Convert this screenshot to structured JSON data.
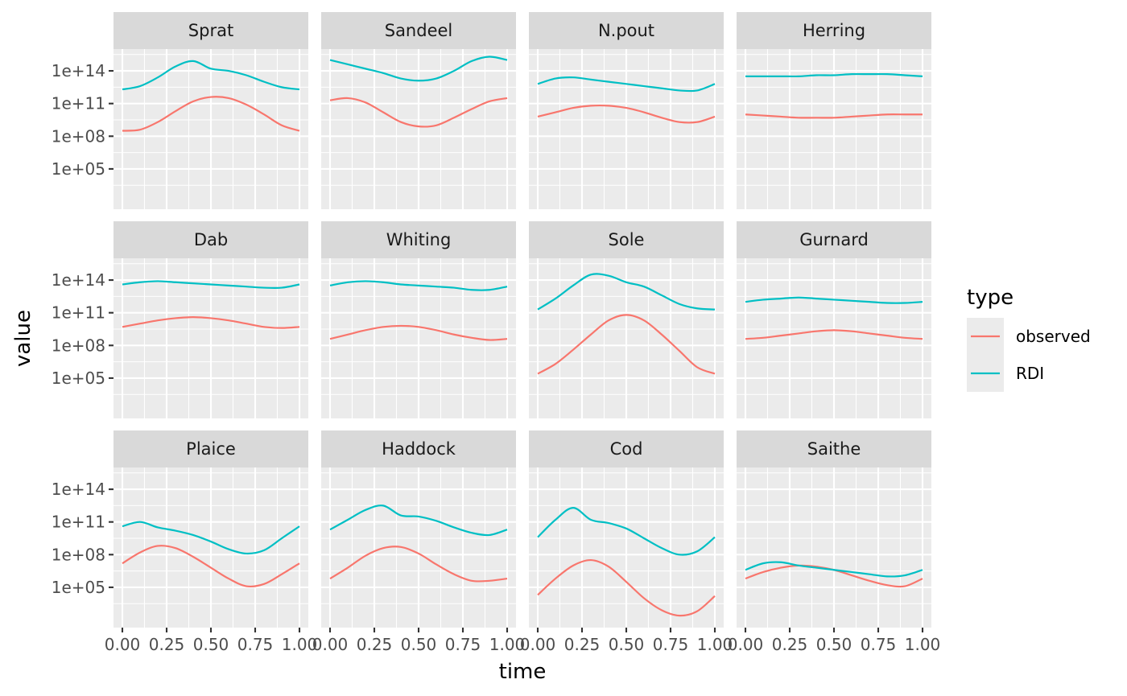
{
  "chart_data": {
    "type": "line",
    "facet_layout": {
      "rows": 3,
      "cols": 4
    },
    "xlabel": "time",
    "ylabel": "value",
    "x_ticks": [
      0,
      0.25,
      0.5,
      0.75,
      1
    ],
    "x_tick_labels": [
      "0.00",
      "0.25",
      "0.50",
      "0.75",
      "1.00"
    ],
    "xlim": [
      -0.05,
      1.05
    ],
    "y_scale": "log10",
    "ylim_log10": [
      1.3,
      16.0
    ],
    "y_ticks_log10": [
      5,
      8,
      11,
      14
    ],
    "y_tick_labels": [
      "1e+05",
      "1e+08",
      "1e+11",
      "1e+14"
    ],
    "legend": {
      "title": "type",
      "placement": "right",
      "entries": [
        {
          "label": "observed",
          "color": "#F8766D"
        },
        {
          "label": "RDI",
          "color": "#00BFC4"
        }
      ]
    },
    "x": [
      0,
      0.1,
      0.2,
      0.3,
      0.4,
      0.5,
      0.6,
      0.7,
      0.8,
      0.9,
      1
    ],
    "panels": [
      {
        "title": "Sprat",
        "series": [
          {
            "name": "observed",
            "log10_values": [
              8.5,
              8.6,
              9.3,
              10.3,
              11.2,
              11.6,
              11.5,
              10.9,
              10.0,
              9.0,
              8.5
            ]
          },
          {
            "name": "RDI",
            "log10_values": [
              12.3,
              12.6,
              13.4,
              14.4,
              14.9,
              14.2,
              14.0,
              13.6,
              13.0,
              12.5,
              12.3
            ]
          }
        ]
      },
      {
        "title": "Sandeel",
        "series": [
          {
            "name": "observed",
            "log10_values": [
              11.3,
              11.5,
              11.1,
              10.2,
              9.3,
              8.9,
              9.0,
              9.7,
              10.5,
              11.2,
              11.5
            ]
          },
          {
            "name": "RDI",
            "log10_values": [
              15.0,
              14.6,
              14.2,
              13.8,
              13.3,
              13.1,
              13.3,
              14.0,
              14.9,
              15.3,
              15.0
            ]
          }
        ]
      },
      {
        "title": "N.pout",
        "series": [
          {
            "name": "observed",
            "log10_values": [
              9.8,
              10.2,
              10.6,
              10.8,
              10.8,
              10.6,
              10.2,
              9.7,
              9.3,
              9.3,
              9.8
            ]
          },
          {
            "name": "RDI",
            "log10_values": [
              12.8,
              13.3,
              13.4,
              13.2,
              13.0,
              12.8,
              12.6,
              12.4,
              12.2,
              12.2,
              12.8
            ]
          }
        ]
      },
      {
        "title": "Herring",
        "series": [
          {
            "name": "observed",
            "log10_values": [
              10.0,
              9.9,
              9.8,
              9.7,
              9.7,
              9.7,
              9.8,
              9.9,
              10.0,
              10.0,
              10.0
            ]
          },
          {
            "name": "RDI",
            "log10_values": [
              13.5,
              13.5,
              13.5,
              13.5,
              13.6,
              13.6,
              13.7,
              13.7,
              13.7,
              13.6,
              13.5
            ]
          }
        ]
      },
      {
        "title": "Dab",
        "series": [
          {
            "name": "observed",
            "log10_values": [
              9.7,
              10.0,
              10.3,
              10.5,
              10.6,
              10.5,
              10.3,
              10.0,
              9.7,
              9.6,
              9.7
            ]
          },
          {
            "name": "RDI",
            "log10_values": [
              13.6,
              13.8,
              13.9,
              13.8,
              13.7,
              13.6,
              13.5,
              13.4,
              13.3,
              13.3,
              13.6
            ]
          }
        ]
      },
      {
        "title": "Whiting",
        "series": [
          {
            "name": "observed",
            "log10_values": [
              8.6,
              9.0,
              9.4,
              9.7,
              9.8,
              9.7,
              9.4,
              9.0,
              8.7,
              8.5,
              8.6
            ]
          },
          {
            "name": "RDI",
            "log10_values": [
              13.5,
              13.8,
              13.9,
              13.8,
              13.6,
              13.5,
              13.4,
              13.3,
              13.1,
              13.1,
              13.4
            ]
          }
        ]
      },
      {
        "title": "Sole",
        "series": [
          {
            "name": "observed",
            "log10_values": [
              5.4,
              6.3,
              7.6,
              9.0,
              10.3,
              10.8,
              10.3,
              9.0,
              7.5,
              6.0,
              5.4
            ]
          },
          {
            "name": "RDI",
            "log10_values": [
              11.3,
              12.3,
              13.5,
              14.5,
              14.4,
              13.8,
              13.4,
              12.6,
              11.8,
              11.4,
              11.3
            ]
          }
        ]
      },
      {
        "title": "Gurnard",
        "series": [
          {
            "name": "observed",
            "log10_values": [
              8.6,
              8.7,
              8.9,
              9.1,
              9.3,
              9.4,
              9.3,
              9.1,
              8.9,
              8.7,
              8.6
            ]
          },
          {
            "name": "RDI",
            "log10_values": [
              12.0,
              12.2,
              12.3,
              12.4,
              12.3,
              12.2,
              12.1,
              12.0,
              11.9,
              11.9,
              12.0
            ]
          }
        ]
      },
      {
        "title": "Plaice",
        "series": [
          {
            "name": "observed",
            "log10_values": [
              7.2,
              8.2,
              8.8,
              8.6,
              7.8,
              6.8,
              5.8,
              5.1,
              5.3,
              6.2,
              7.2
            ]
          },
          {
            "name": "RDI",
            "log10_values": [
              10.6,
              11.0,
              10.5,
              10.2,
              9.8,
              9.2,
              8.5,
              8.1,
              8.4,
              9.5,
              10.6
            ]
          }
        ]
      },
      {
        "title": "Haddock",
        "series": [
          {
            "name": "observed",
            "log10_values": [
              5.8,
              6.8,
              7.9,
              8.6,
              8.7,
              8.1,
              7.1,
              6.2,
              5.6,
              5.6,
              5.8
            ]
          },
          {
            "name": "RDI",
            "log10_values": [
              10.3,
              11.2,
              12.1,
              12.5,
              11.6,
              11.5,
              11.1,
              10.5,
              10.0,
              9.8,
              10.3
            ]
          }
        ]
      },
      {
        "title": "Cod",
        "series": [
          {
            "name": "observed",
            "log10_values": [
              4.3,
              5.8,
              7.0,
              7.5,
              6.9,
              5.5,
              4.0,
              2.9,
              2.4,
              2.8,
              4.2
            ]
          },
          {
            "name": "RDI",
            "log10_values": [
              9.6,
              11.2,
              12.3,
              11.2,
              10.9,
              10.4,
              9.5,
              8.6,
              8.0,
              8.3,
              9.6
            ]
          }
        ]
      },
      {
        "title": "Saithe",
        "series": [
          {
            "name": "observed",
            "log10_values": [
              5.8,
              6.4,
              6.8,
              7.0,
              6.9,
              6.6,
              6.1,
              5.6,
              5.2,
              5.1,
              5.8
            ]
          },
          {
            "name": "RDI",
            "log10_values": [
              6.6,
              7.2,
              7.3,
              7.0,
              6.8,
              6.6,
              6.4,
              6.2,
              6.0,
              6.1,
              6.6
            ]
          }
        ]
      }
    ]
  }
}
